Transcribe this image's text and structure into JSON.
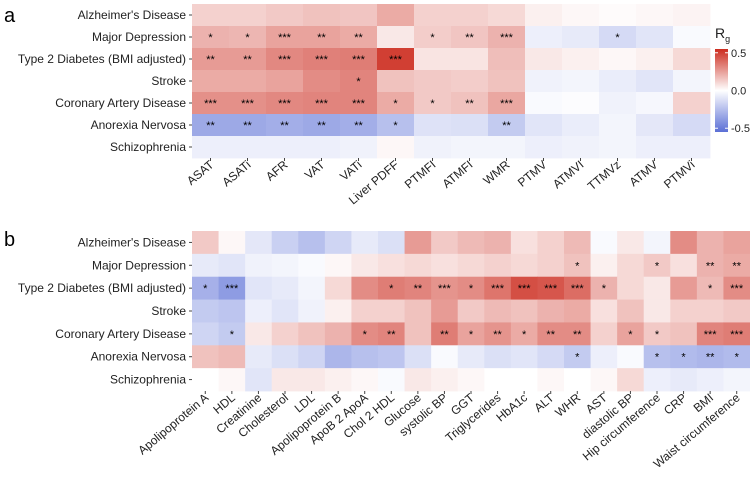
{
  "chart_data": [
    {
      "type": "heatmap",
      "panel_label": "a",
      "rows": [
        "Alzheimer's Disease",
        "Major Depression",
        "Type 2 Diabetes (BMI adjusted)",
        "Stroke",
        "Coronary Artery Disease",
        "Anorexia Nervosa",
        "Schizophrenia"
      ],
      "columns": [
        "ASAT",
        "ASATi",
        "AFR",
        "VAT",
        "VATi",
        "Liver PDFF",
        "PTMFI",
        "ATMFI",
        "WMR",
        "PTMV",
        "ATMVI",
        "TTMVz",
        "ATMV",
        "PTMVi"
      ],
      "values": [
        [
          0.12,
          0.12,
          0.14,
          0.16,
          0.15,
          0.22,
          0.12,
          0.12,
          0.1,
          0.04,
          0.02,
          0.01,
          0.02,
          0.03
        ],
        [
          0.2,
          0.19,
          0.24,
          0.24,
          0.22,
          0.06,
          0.13,
          0.15,
          0.2,
          -0.06,
          -0.08,
          -0.14,
          -0.1,
          -0.02
        ],
        [
          0.26,
          0.26,
          0.31,
          0.33,
          0.34,
          0.5,
          0.07,
          0.07,
          0.17,
          0.06,
          0.04,
          0.02,
          0.04,
          0.1
        ],
        [
          0.22,
          0.22,
          0.24,
          0.3,
          0.32,
          0.16,
          0.14,
          0.13,
          0.16,
          -0.05,
          -0.04,
          -0.07,
          -0.1,
          -0.04
        ],
        [
          0.29,
          0.29,
          0.31,
          0.32,
          0.32,
          0.22,
          0.14,
          0.16,
          0.23,
          -0.02,
          -0.01,
          -0.05,
          -0.03,
          0.12
        ],
        [
          -0.33,
          -0.33,
          -0.31,
          -0.33,
          -0.31,
          -0.24,
          -0.11,
          -0.12,
          -0.2,
          -0.1,
          -0.07,
          -0.04,
          -0.09,
          -0.14
        ],
        [
          -0.06,
          -0.06,
          -0.06,
          -0.06,
          -0.05,
          0.02,
          -0.05,
          -0.04,
          -0.04,
          -0.06,
          -0.05,
          -0.04,
          -0.06,
          -0.06
        ]
      ],
      "significance": [
        [
          "",
          "",
          "",
          "",
          "",
          "",
          "",
          "",
          "",
          "",
          "",
          "",
          "",
          ""
        ],
        [
          "*",
          "*",
          "***",
          "**",
          "**",
          "",
          "*",
          "**",
          "***",
          "",
          "",
          "*",
          "",
          ""
        ],
        [
          "**",
          "**",
          "***",
          "***",
          "***",
          "***",
          "",
          "",
          "",
          "",
          "",
          "",
          "",
          ""
        ],
        [
          "",
          "",
          "",
          "",
          "*",
          "",
          "",
          "",
          "",
          "",
          "",
          "",
          "",
          ""
        ],
        [
          "***",
          "***",
          "***",
          "***",
          "***",
          "*",
          "*",
          "**",
          "***",
          "",
          "",
          "",
          "",
          ""
        ],
        [
          "**",
          "**",
          "**",
          "**",
          "**",
          "*",
          "",
          "",
          "**",
          "",
          "",
          "",
          "",
          ""
        ],
        [
          "",
          "",
          "",
          "",
          "",
          "",
          "",
          "",
          "",
          "",
          "",
          "",
          "",
          ""
        ]
      ],
      "legend": {
        "title": "R",
        "title_subscript": "g",
        "ticks": [
          0.5,
          0.0,
          -0.5
        ],
        "tick_labels": [
          "0.5",
          "0.0",
          "-0.5"
        ],
        "range": [
          -0.55,
          0.55
        ],
        "colors": {
          "low": "#5b6fd6",
          "mid": "#ffffff",
          "high": "#cc2c1f"
        }
      }
    },
    {
      "type": "heatmap",
      "panel_label": "b",
      "rows": [
        "Alzheimer's Disease",
        "Major Depression",
        "Type 2 Diabetes (BMI adjusted)",
        "Stroke",
        "Coronary Artery Disease",
        "Anorexia Nervosa",
        "Schizophrenia"
      ],
      "columns": [
        "Apolipoprotein A",
        "HDL",
        "Creatinine",
        "Cholesterol",
        "LDL",
        "Apolipoprotein B",
        "ApoB 2 ApoA",
        "Chol 2 HDL",
        "Glucose",
        "systolic BP",
        "GGT",
        "Triglycerides",
        "HbA1c",
        "ALT",
        "WHR",
        "AST",
        "diastolic BP",
        "Hip circumference",
        "CRP",
        "BMI",
        "Waist circumference"
      ],
      "values": [
        [
          0.14,
          0.02,
          -0.09,
          -0.18,
          -0.24,
          -0.16,
          -0.08,
          -0.12,
          0.26,
          0.14,
          0.18,
          0.2,
          0.08,
          0.12,
          0.18,
          -0.02,
          0.06,
          -0.04,
          0.3,
          0.2,
          0.24
        ],
        [
          -0.08,
          -0.1,
          -0.05,
          -0.04,
          -0.02,
          0.02,
          0.06,
          0.08,
          0.1,
          0.08,
          0.1,
          0.12,
          0.1,
          0.12,
          0.16,
          0.04,
          0.1,
          0.14,
          0.08,
          0.2,
          0.22
        ],
        [
          -0.3,
          -0.38,
          -0.1,
          -0.08,
          -0.04,
          0.1,
          0.3,
          0.34,
          0.32,
          0.28,
          0.3,
          0.36,
          0.46,
          0.44,
          0.38,
          0.2,
          0.1,
          0.06,
          0.26,
          0.18,
          0.3
        ],
        [
          -0.2,
          -0.22,
          -0.06,
          -0.1,
          -0.05,
          0.04,
          0.12,
          0.12,
          0.16,
          0.26,
          0.14,
          0.18,
          0.16,
          0.2,
          0.22,
          0.08,
          0.16,
          0.06,
          0.12,
          0.12,
          0.14
        ],
        [
          -0.16,
          -0.2,
          0.06,
          0.12,
          0.16,
          0.2,
          0.3,
          0.32,
          0.16,
          0.34,
          0.24,
          0.28,
          0.22,
          0.3,
          0.3,
          0.12,
          0.24,
          0.14,
          0.16,
          0.32,
          0.34
        ],
        [
          0.16,
          0.18,
          -0.08,
          -0.12,
          -0.16,
          -0.28,
          -0.24,
          -0.22,
          -0.12,
          -0.02,
          -0.08,
          -0.12,
          -0.1,
          -0.14,
          -0.2,
          -0.06,
          -0.02,
          -0.24,
          -0.26,
          -0.28,
          -0.26
        ],
        [
          0.0,
          0.02,
          -0.1,
          0.06,
          0.06,
          0.04,
          0.02,
          -0.02,
          0.06,
          0.04,
          0.02,
          0.0,
          0.0,
          0.02,
          0.0,
          0.02,
          0.1,
          -0.06,
          -0.08,
          -0.06,
          -0.04
        ]
      ],
      "significance": [
        [
          "",
          "",
          "",
          "",
          "",
          "",
          "",
          "",
          "",
          "",
          "",
          "",
          "",
          "",
          "",
          "",
          "",
          "",
          "",
          "",
          ""
        ],
        [
          "",
          "",
          "",
          "",
          "",
          "",
          "",
          "",
          "",
          "",
          "",
          "",
          "",
          "",
          "*",
          "",
          "",
          "*",
          "",
          "**",
          "**"
        ],
        [
          "*",
          "***",
          "",
          "",
          "",
          "",
          "",
          "*",
          "**",
          "***",
          "*",
          "***",
          "***",
          "***",
          "***",
          "*",
          "",
          "",
          "",
          "*",
          "***"
        ],
        [
          "",
          "",
          "",
          "",
          "",
          "",
          "",
          "",
          "",
          "",
          "",
          "",
          "",
          "",
          "",
          "",
          "",
          "",
          "",
          "",
          ""
        ],
        [
          "",
          "*",
          "",
          "",
          "",
          "",
          "*",
          "**",
          "",
          "**",
          "*",
          "**",
          "*",
          "**",
          "**",
          "",
          "*",
          "*",
          "",
          "***",
          "***"
        ],
        [
          "",
          "",
          "",
          "",
          "",
          "",
          "",
          "",
          "",
          "",
          "",
          "",
          "",
          "",
          "*",
          "",
          "",
          "*",
          "*",
          "**",
          "*"
        ],
        [
          "",
          "",
          "",
          "",
          "",
          "",
          "",
          "",
          "",
          "",
          "",
          "",
          "",
          "",
          "",
          "",
          "",
          "",
          "",
          "",
          ""
        ]
      ]
    }
  ]
}
